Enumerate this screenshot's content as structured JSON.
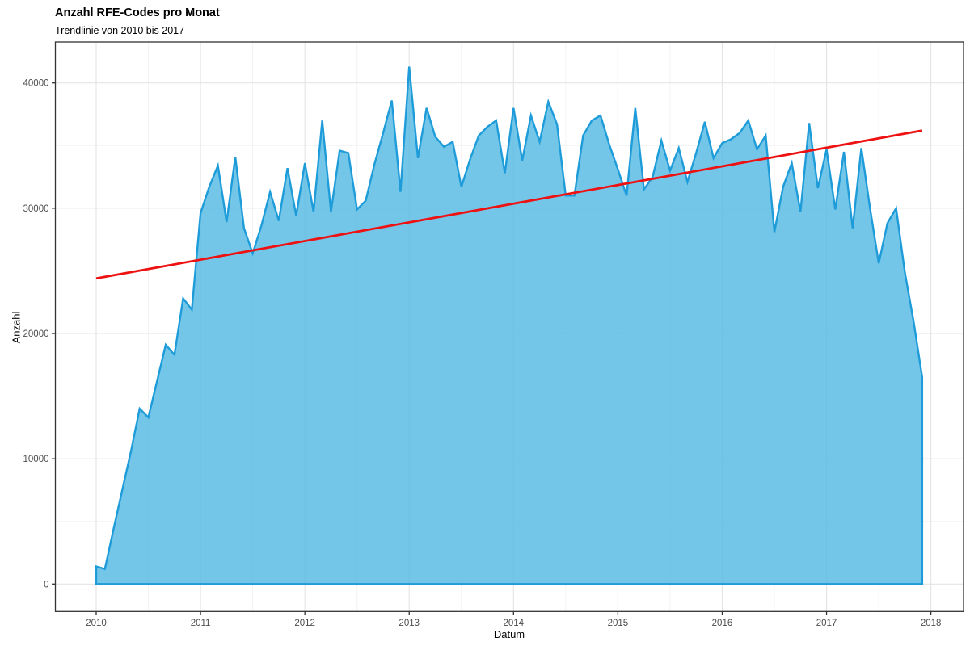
{
  "chart_data": {
    "type": "area",
    "title": "Anzahl RFE-Codes pro Monat",
    "subtitle": "Trendlinie von 2010 bis 2017",
    "xlabel": "Datum",
    "ylabel": "Anzahl",
    "x_unit": "month",
    "x_start": "2010-01",
    "x_end": "2017-12",
    "legend": false,
    "grid": true,
    "x_ticks": {
      "labels": [
        "2010",
        "2011",
        "2012",
        "2013",
        "2014",
        "2015",
        "2016",
        "2017",
        "2018"
      ],
      "month_indices": [
        0,
        12,
        24,
        36,
        48,
        60,
        72,
        84,
        96
      ]
    },
    "x_minor_month_indices": [
      6,
      18,
      30,
      42,
      54,
      66,
      78,
      90
    ],
    "y_ticks": {
      "labels": [
        "0",
        "10000",
        "20000",
        "30000",
        "40000"
      ],
      "values": [
        0,
        10000,
        20000,
        30000,
        40000
      ]
    },
    "y_minor_values": [
      5000,
      15000,
      25000,
      35000
    ],
    "ylim_displayed": [
      0,
      41300
    ],
    "area_monthly_values": [
      1400,
      1200,
      4400,
      7500,
      10600,
      14000,
      13300,
      16200,
      19100,
      18300,
      22800,
      21900,
      29600,
      31700,
      33400,
      28900,
      34100,
      28400,
      26400,
      28600,
      31300,
      29000,
      33200,
      29400,
      33600,
      29700,
      37000,
      29700,
      34600,
      34400,
      29900,
      30600,
      33500,
      36000,
      38600,
      31300,
      41300,
      34000,
      38000,
      35700,
      34900,
      35300,
      31700,
      33900,
      35800,
      36500,
      37000,
      32800,
      38000,
      33800,
      37400,
      35300,
      38500,
      36700,
      31000,
      31000,
      35800,
      37000,
      37400,
      35100,
      33100,
      31000,
      38000,
      31500,
      32500,
      35400,
      33000,
      34800,
      32100,
      34400,
      36900,
      34000,
      35200,
      35500,
      36000,
      37000,
      34700,
      35800,
      28100,
      31700,
      33600,
      29700,
      36800,
      31600,
      34700,
      29900,
      34500,
      28400,
      34800,
      30000,
      25600,
      28800,
      30000,
      24900,
      21000,
      16500
    ],
    "trendline": {
      "month_indices": [
        0,
        95
      ],
      "values": [
        24400,
        36200
      ]
    },
    "colors": {
      "area_fill": "#56b9e3",
      "area_stroke": "#1e9cd9",
      "trend_line": "#ee1111",
      "grid_major": "#e4e4e4",
      "grid_minor": "#f2f2f2",
      "panel_border": "#333333",
      "tick_text": "#4d4d4d",
      "background": "#ffffff"
    }
  }
}
